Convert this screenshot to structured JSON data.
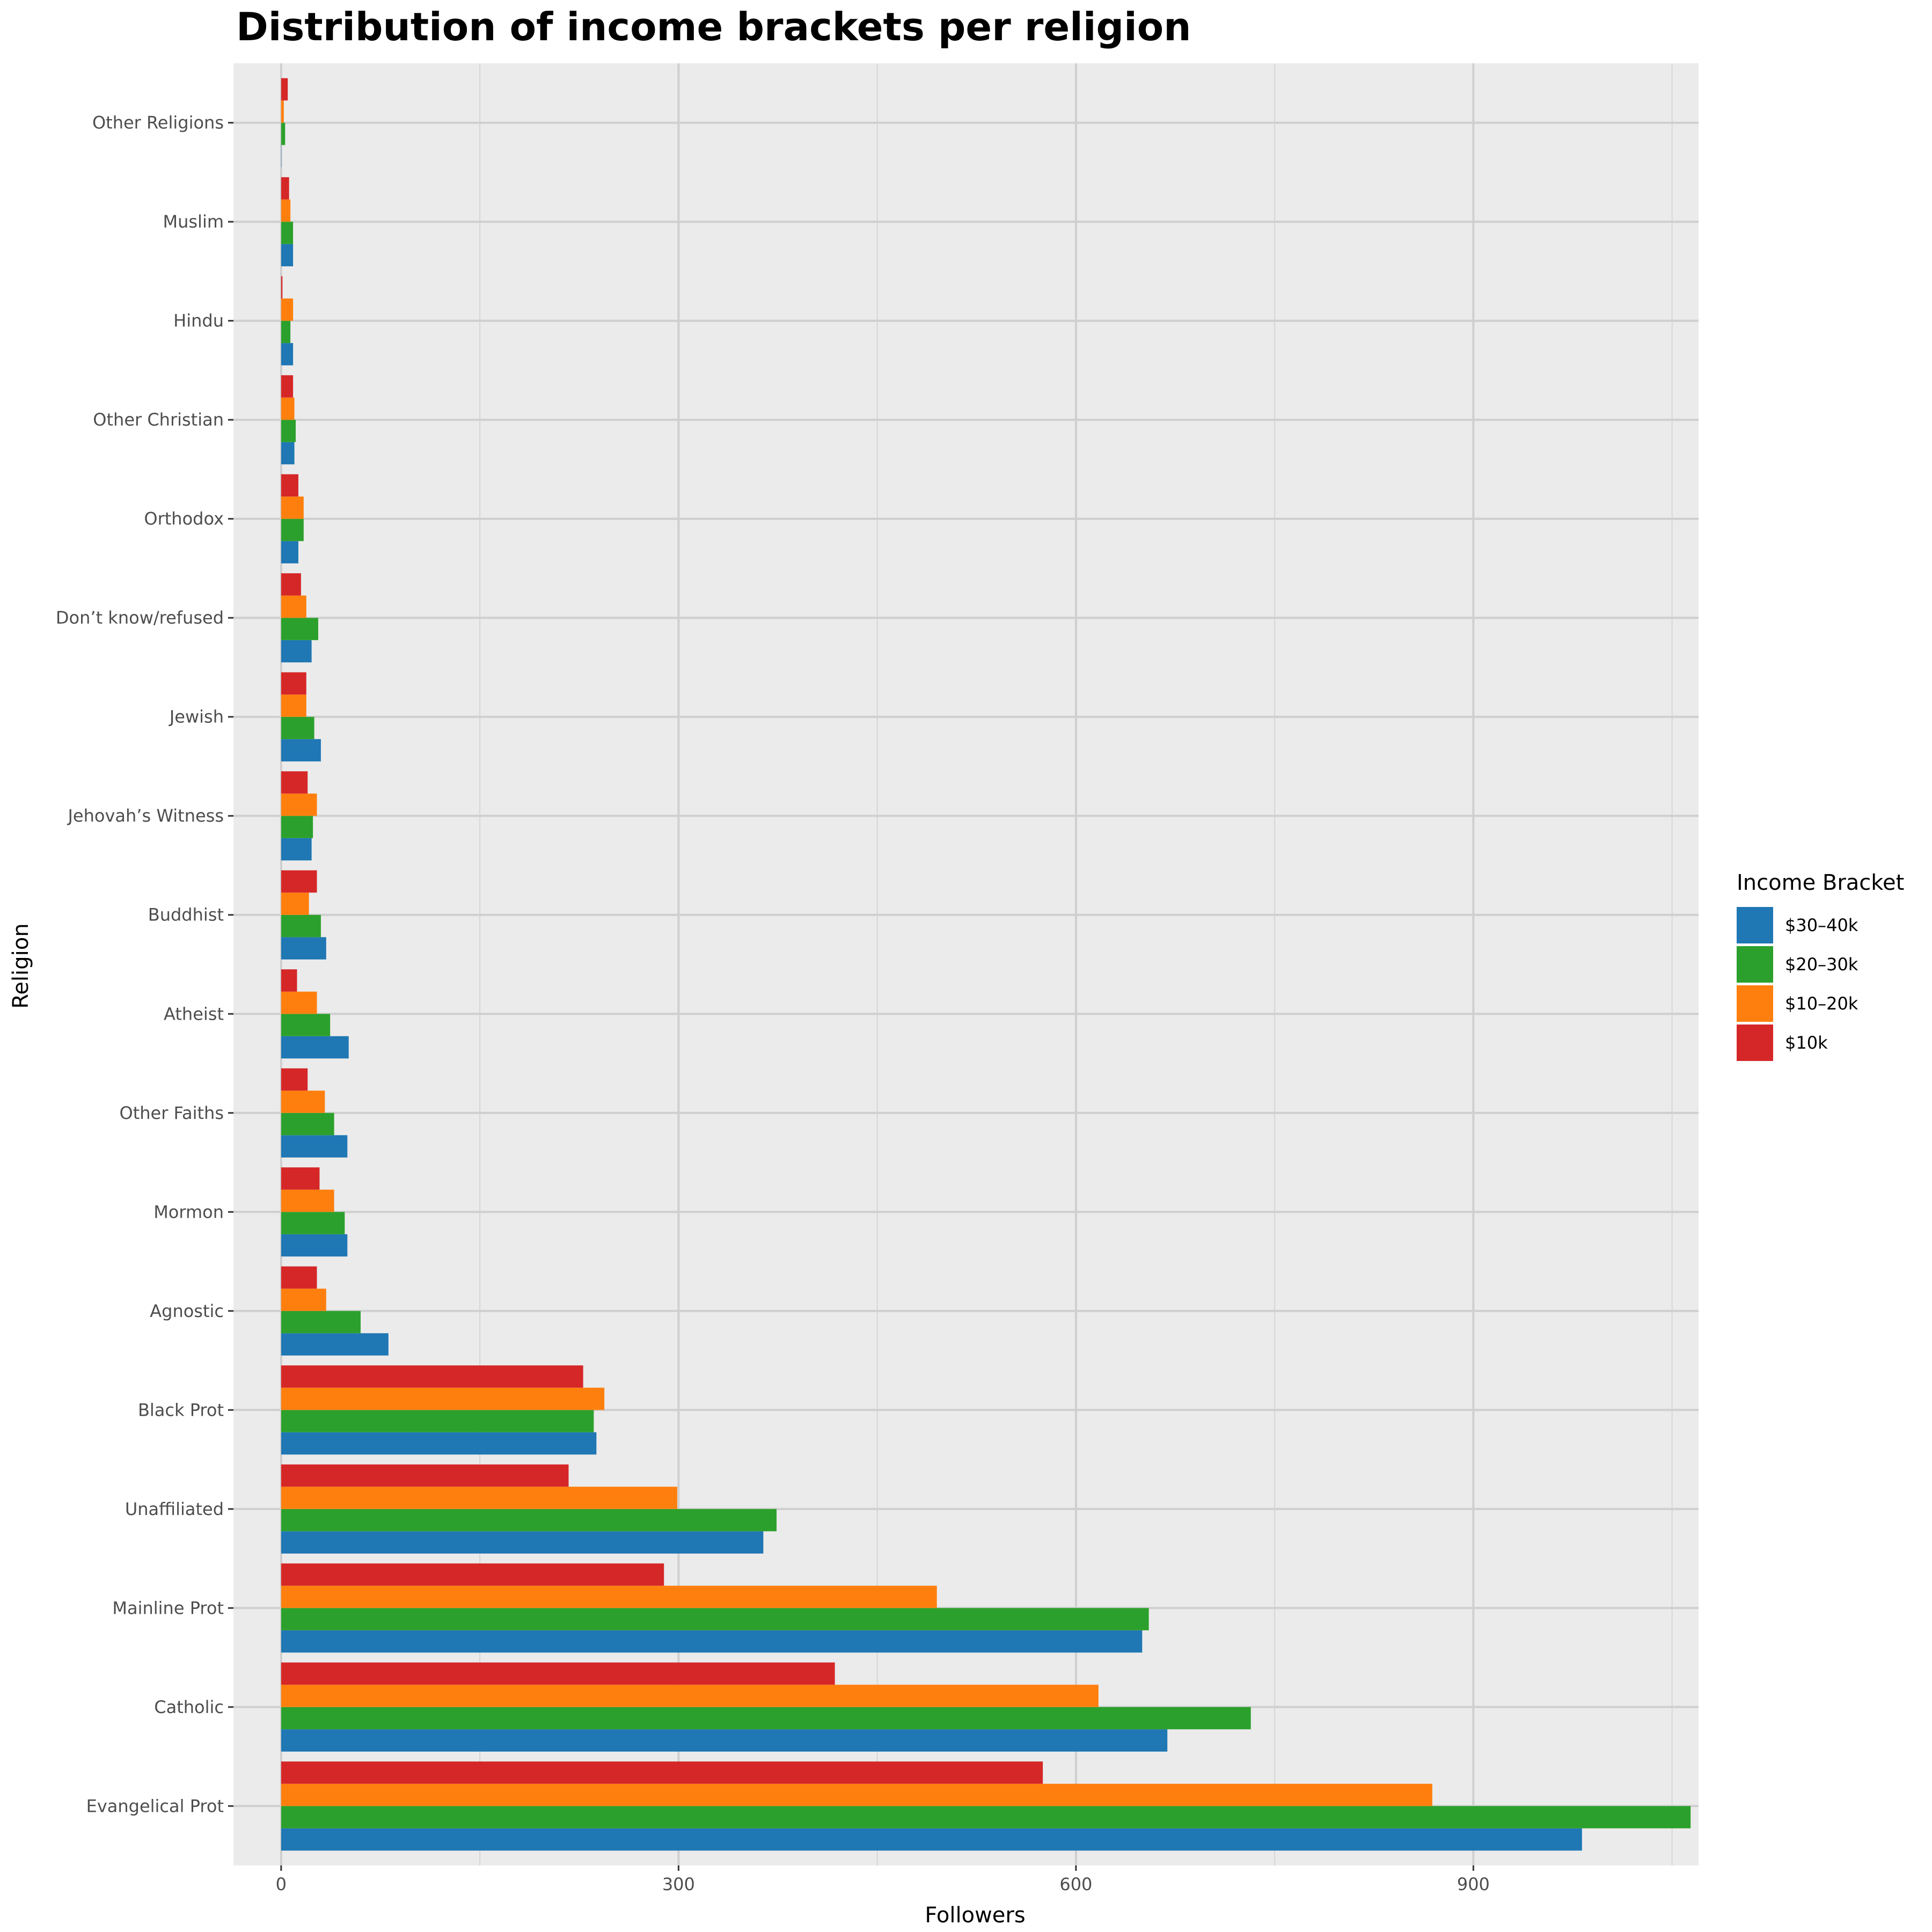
{
  "chart_data": {
    "type": "bar",
    "orientation": "horizontal",
    "title": "Distribution of income brackets per religion",
    "xlabel": "Followers",
    "ylabel": "Religion",
    "xlim": [
      -36,
      1070
    ],
    "x_ticks": [
      0,
      300,
      600,
      900
    ],
    "x_tick_labels": [
      "0",
      "300",
      "600",
      "900"
    ],
    "grid": true,
    "legend_title": "Income Bracket",
    "legend_position": "right",
    "categories": [
      "Other Religions",
      "Muslim",
      "Hindu",
      "Other Christian",
      "Orthodox",
      "Don’t know/refused",
      "Jewish",
      "Jehovah’s Witness",
      "Buddhist",
      "Atheist",
      "Other Faiths",
      "Mormon",
      "Agnostic",
      "Black Prot",
      "Unaffiliated",
      "Mainline Prot",
      "Catholic",
      "Evangelical Prot"
    ],
    "series": [
      {
        "name": "$30–40k",
        "color": "#1f77b4",
        "values": [
          0,
          9,
          9,
          10,
          13,
          23,
          30,
          23,
          34,
          51,
          50,
          50,
          81,
          238,
          364,
          650,
          669,
          982
        ]
      },
      {
        "name": "$20–30k",
        "color": "#2ca02c",
        "values": [
          3,
          9,
          7,
          11,
          17,
          28,
          25,
          24,
          30,
          37,
          40,
          48,
          60,
          236,
          374,
          655,
          732,
          1064
        ]
      },
      {
        "name": "$10–20k",
        "color": "#ff7f0e",
        "values": [
          2,
          7,
          9,
          10,
          17,
          19,
          19,
          27,
          21,
          27,
          33,
          40,
          34,
          244,
          299,
          495,
          617,
          869
        ]
      },
      {
        "name": "$10k",
        "color": "#d62728",
        "values": [
          5,
          6,
          1,
          9,
          13,
          15,
          19,
          20,
          27,
          12,
          20,
          29,
          27,
          228,
          217,
          289,
          418,
          575
        ]
      }
    ]
  }
}
